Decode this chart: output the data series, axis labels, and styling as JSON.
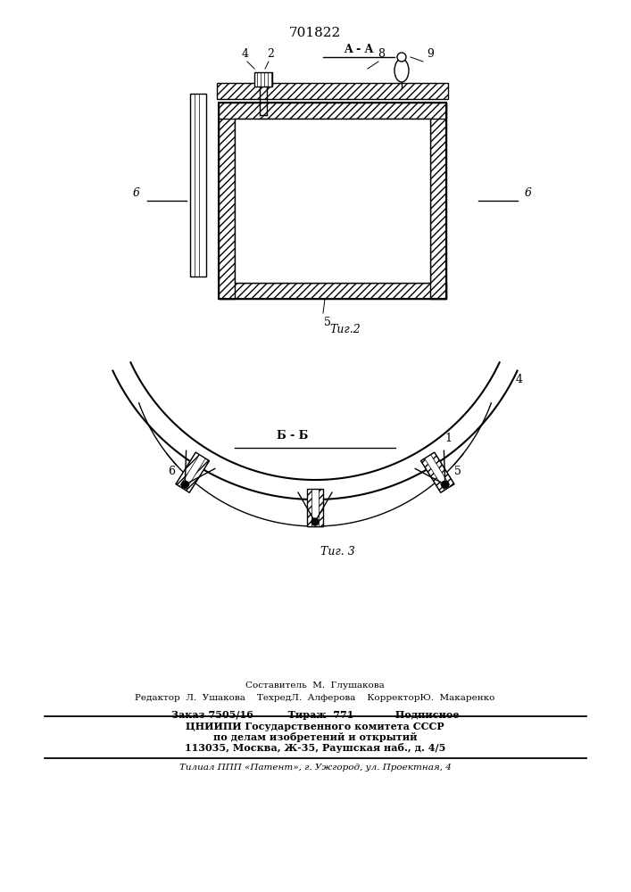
{
  "title": "701822",
  "title_fontsize": 11,
  "bg_color": "#ffffff",
  "line_color": "#000000",
  "fig2_label": "Τиг.2",
  "fig3_label": "Τиг. 3",
  "section_aa": "A - A",
  "section_bb": "Б - Б",
  "footer_line1": "Составитель  М.  Глушакова",
  "footer_line2": "Редактор  Л.  Ушакова    ТехредЛ.  Алферова    КорректорЮ.  Макаренко",
  "footer_line3": "Заказ 7505/16          Тираж  771            Подписное",
  "footer_line4": "ЦНИИПИ Государственного комитета СССР",
  "footer_line5": "по делам изобретений и открытий",
  "footer_line6": "113035, Москва, Ж-35, Раушская наб., д. 4/5",
  "footer_line7": "Τилиал ППП «Патент», г. Ужгород, ул. Проектная, 4"
}
